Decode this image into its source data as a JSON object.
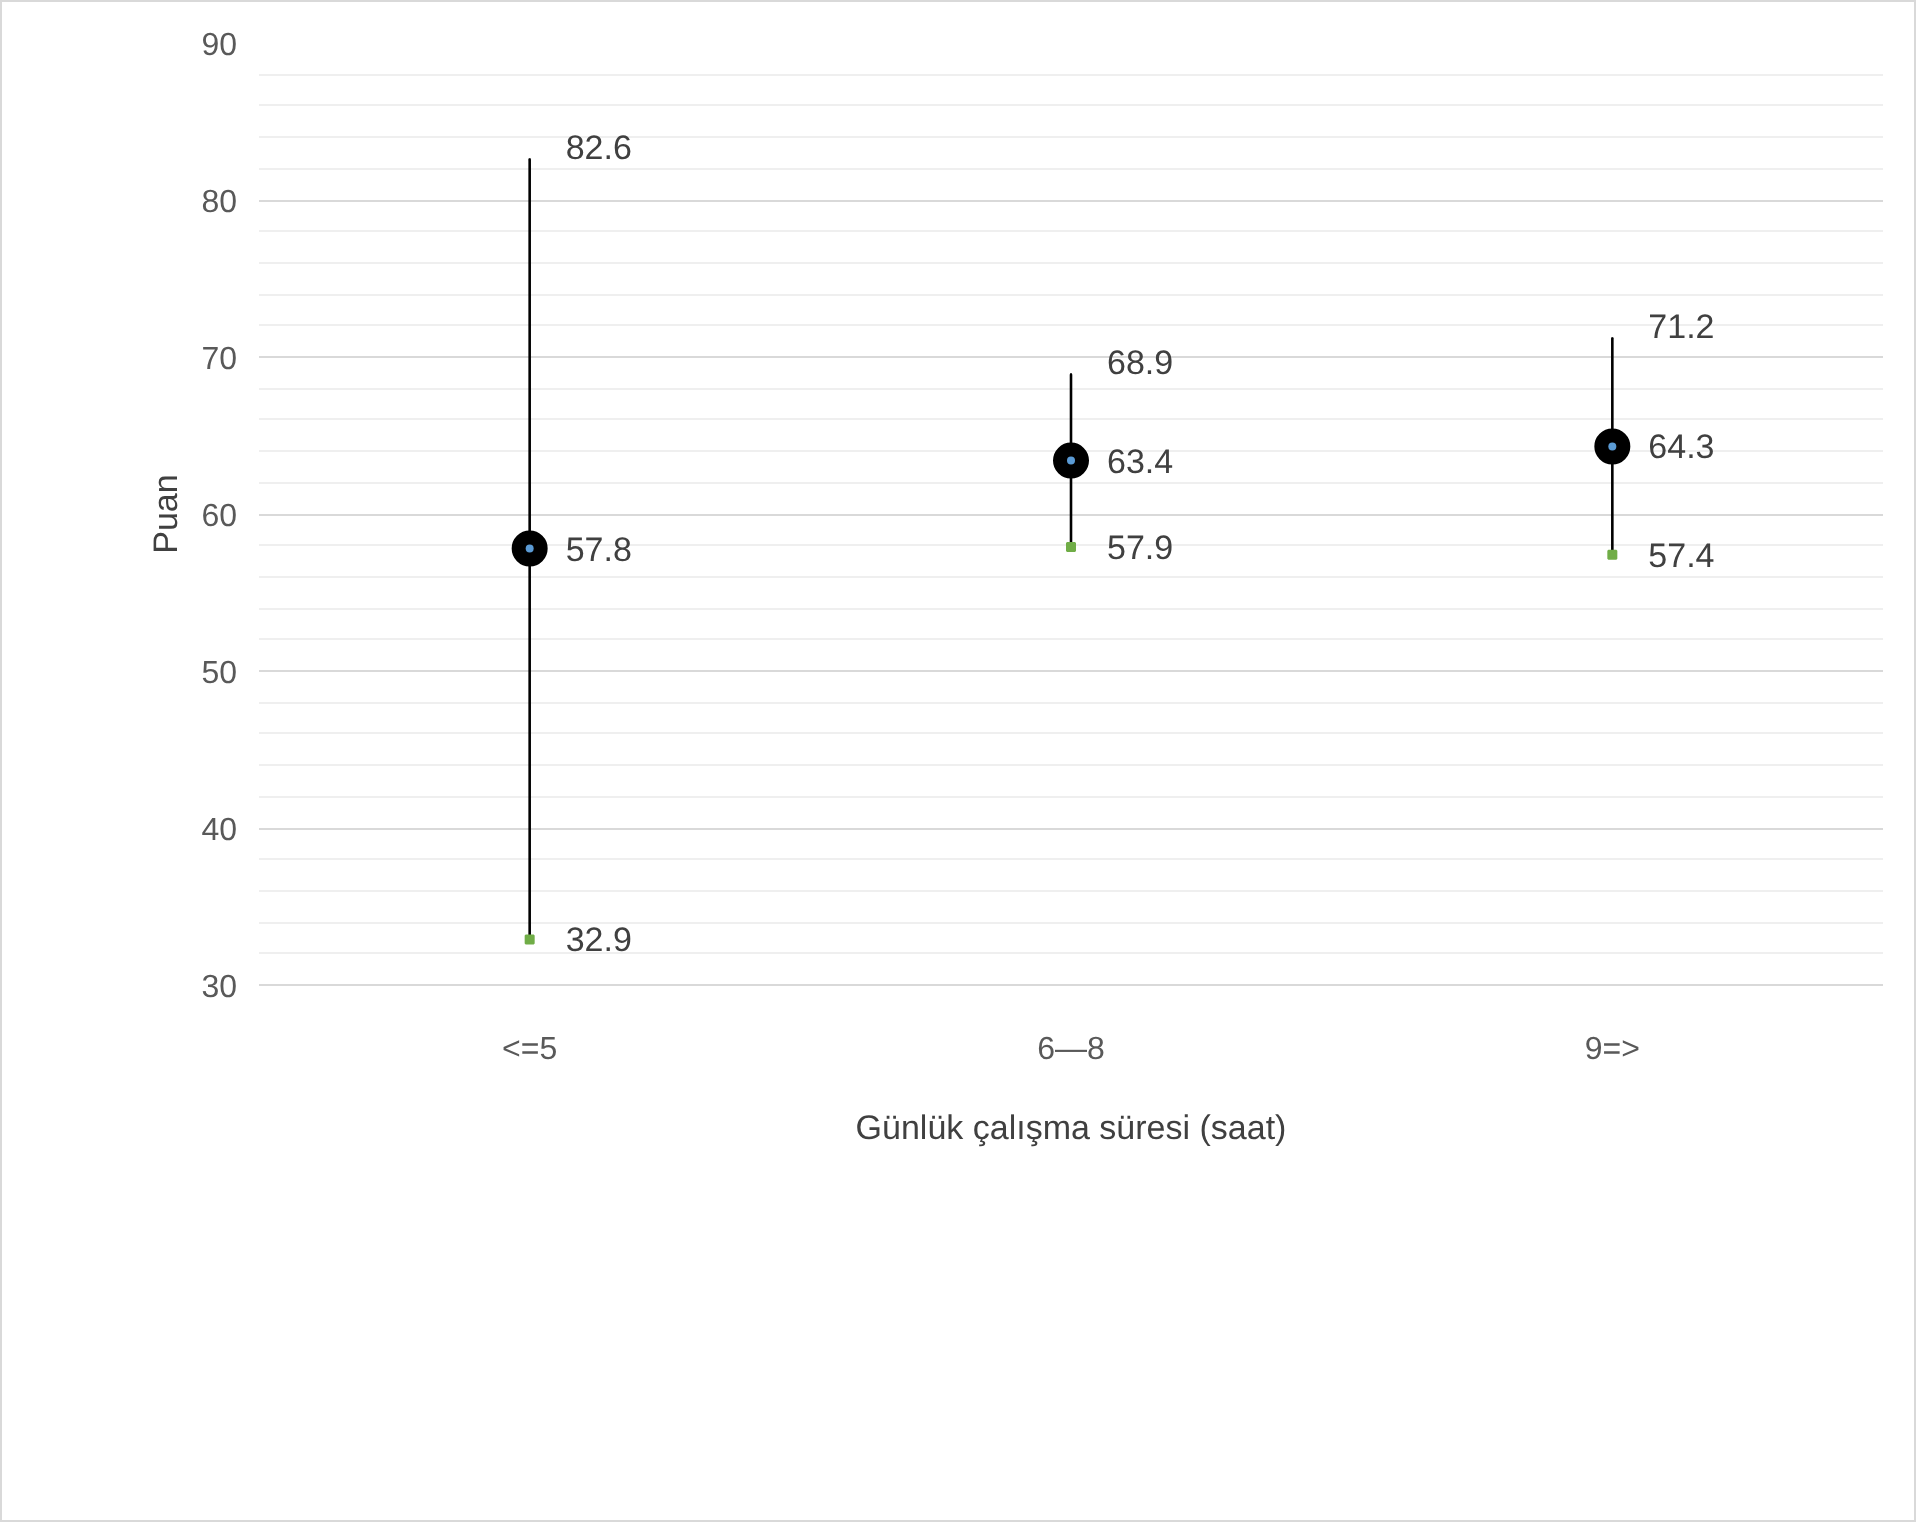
{
  "chart_data": {
    "type": "scatter",
    "xlabel": "Günlük çalışma süresi (saat)",
    "ylabel": "Puan",
    "categories": [
      "<=5",
      "6—8",
      "9=>"
    ],
    "series": [
      {
        "marker": "circle",
        "color": "#000000",
        "values": [
          57.8,
          63.4,
          64.3
        ],
        "errors": [
          [
            32.9,
            82.6
          ],
          [
            57.9,
            68.9
          ],
          [
            57.4,
            71.2
          ]
        ]
      },
      {
        "marker": "square",
        "color": "#70ad47",
        "values": [
          32.9,
          57.9,
          57.4
        ]
      }
    ],
    "annotations": [
      {
        "text": "82.6",
        "x": "<=5",
        "y": 82.6
      },
      {
        "text": "68.9",
        "x": "6—8",
        "y": 68.9
      },
      {
        "text": "71.2",
        "x": "9=>",
        "y": 71.2
      }
    ],
    "ylim": [
      30,
      90
    ],
    "yticks": [
      30,
      40,
      50,
      60,
      70,
      80,
      90
    ],
    "grid": "y",
    "data_labels": true
  }
}
